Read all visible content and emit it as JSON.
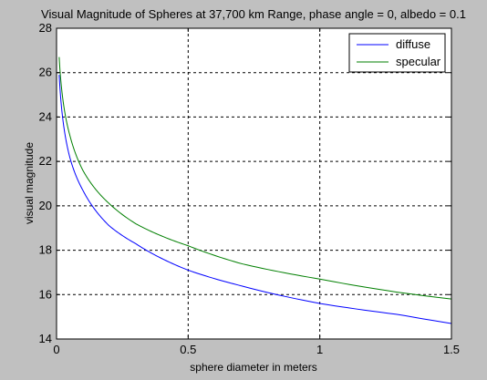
{
  "chart_data": {
    "type": "line",
    "title": "Visual Magnitude of Spheres at 37,700 km Range, phase angle = 0, albedo = 0.1",
    "xlabel": "sphere diameter in meters",
    "ylabel": "visual magnitude",
    "xlim": [
      0,
      1.5
    ],
    "ylim": [
      14,
      28
    ],
    "xticks": [
      0,
      0.5,
      1,
      1.5
    ],
    "xtick_labels": [
      "0",
      "0.5",
      "1",
      "1.5"
    ],
    "yticks": [
      14,
      16,
      18,
      20,
      22,
      24,
      26,
      28
    ],
    "ytick_labels": [
      "14",
      "16",
      "18",
      "20",
      "22",
      "24",
      "26",
      "28"
    ],
    "grid": true,
    "legend_position": "top-right",
    "series": [
      {
        "name": "diffuse",
        "color": "#0000ff",
        "x": [
          0.01,
          0.05,
          0.1,
          0.2,
          0.3,
          0.5,
          0.7,
          1.0,
          1.3,
          1.5
        ],
        "y": [
          25.9,
          22.2,
          20.7,
          19.1,
          18.3,
          17.1,
          16.4,
          15.6,
          15.1,
          14.7
        ]
      },
      {
        "name": "specular",
        "color": "#007f00",
        "x": [
          0.01,
          0.05,
          0.1,
          0.2,
          0.3,
          0.5,
          0.7,
          1.0,
          1.3,
          1.5
        ],
        "y": [
          26.7,
          23.2,
          21.6,
          20.1,
          19.2,
          18.2,
          17.4,
          16.7,
          16.1,
          15.8
        ]
      }
    ]
  }
}
